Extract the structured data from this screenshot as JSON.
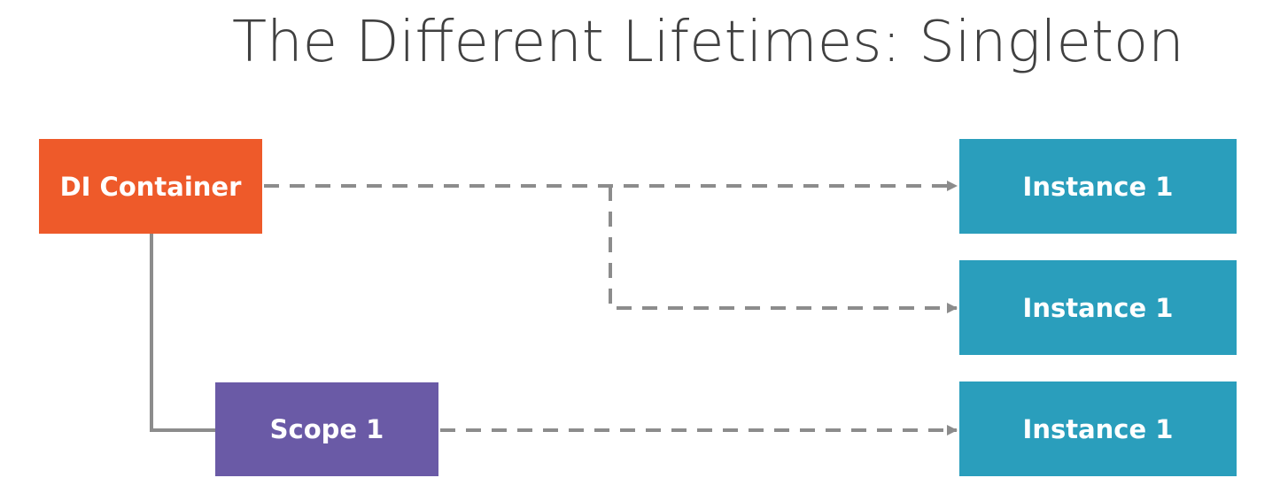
{
  "title": "The Different Lifetimes: Singleton",
  "colors": {
    "container": "#ee5a2a",
    "scope": "#6a5aa6",
    "instance": "#2a9ebc",
    "connector": "#8c8c8c",
    "title": "#404040"
  },
  "nodes": {
    "container": {
      "label": "DI Container"
    },
    "scope": {
      "label": "Scope 1"
    },
    "instances": [
      {
        "label": "Instance 1"
      },
      {
        "label": "Instance 1"
      },
      {
        "label": "Instance 1"
      }
    ]
  },
  "edges": [
    {
      "from": "DI Container",
      "to": "Scope 1",
      "style": "solid"
    },
    {
      "from": "DI Container",
      "to": "Instance 1 (top)",
      "style": "dashed-arrow"
    },
    {
      "from": "DI Container",
      "to": "Instance 1 (middle)",
      "style": "dashed-arrow"
    },
    {
      "from": "Scope 1",
      "to": "Instance 1 (bottom)",
      "style": "dashed-arrow"
    }
  ]
}
